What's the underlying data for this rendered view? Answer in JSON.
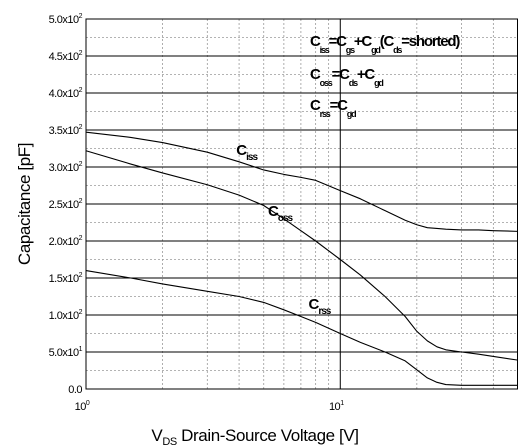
{
  "chart_data": {
    "type": "line",
    "xscale": "log",
    "xlim": [
      1,
      50
    ],
    "ylim": [
      0,
      500
    ],
    "xlabel": {
      "v": "V",
      "sub": "DS",
      "text": "Drain-Source Voltage [V]"
    },
    "ylabel": "Capacitance   [pF]",
    "x_ticks": [
      {
        "value": 1,
        "base": "10",
        "exp": "0"
      },
      {
        "value": 10,
        "base": "10",
        "exp": "1"
      }
    ],
    "y_ticks": [
      {
        "value": 0,
        "text": "0.0",
        "exp": ""
      },
      {
        "value": 50,
        "text": "5.0x10",
        "exp": "1"
      },
      {
        "value": 100,
        "text": "1.0x10",
        "exp": "2"
      },
      {
        "value": 150,
        "text": "1.5x10",
        "exp": "2"
      },
      {
        "value": 200,
        "text": "2.0x10",
        "exp": "2"
      },
      {
        "value": 250,
        "text": "2.5x10",
        "exp": "2"
      },
      {
        "value": 300,
        "text": "3.0x10",
        "exp": "2"
      },
      {
        "value": 350,
        "text": "3.5x10",
        "exp": "2"
      },
      {
        "value": 400,
        "text": "4.0x10",
        "exp": "2"
      },
      {
        "value": 450,
        "text": "4.5x10",
        "exp": "2"
      },
      {
        "value": 500,
        "text": "5.0x10",
        "exp": "2"
      }
    ],
    "grid": {
      "major": true,
      "minor_dashed": true
    },
    "series": [
      {
        "name": "Ciss",
        "x": [
          1,
          1.5,
          2,
          3,
          4,
          5,
          6,
          7,
          8,
          10,
          12,
          15,
          18,
          20,
          22,
          24,
          26,
          30,
          35,
          40,
          50
        ],
        "y": [
          347,
          340,
          333,
          320,
          307,
          296,
          290,
          286,
          282,
          268,
          257,
          241,
          228,
          222,
          218,
          217,
          216,
          215,
          215,
          214,
          213
        ]
      },
      {
        "name": "Coss",
        "x": [
          1,
          1.5,
          2,
          3,
          4,
          5,
          6,
          7,
          8,
          10,
          12,
          15,
          18,
          20,
          22,
          24,
          26,
          30,
          35,
          40,
          50
        ],
        "y": [
          322,
          304,
          292,
          276,
          262,
          248,
          230,
          214,
          200,
          175,
          154,
          125,
          98,
          78,
          65,
          57,
          53,
          50,
          47,
          44,
          39
        ]
      },
      {
        "name": "Crss",
        "x": [
          1,
          1.5,
          2,
          3,
          4,
          5,
          6,
          7,
          8,
          10,
          12,
          15,
          18,
          20,
          22,
          24,
          26,
          30,
          35,
          40,
          50
        ],
        "y": [
          160,
          150,
          142,
          132,
          125,
          117,
          107,
          98,
          90,
          75,
          63,
          50,
          38,
          26,
          15,
          9,
          6,
          5,
          5,
          5,
          5
        ]
      }
    ],
    "curve_labels": [
      {
        "series": "Ciss",
        "main": "C",
        "sub": "iss"
      },
      {
        "series": "Coss",
        "main": "C",
        "sub": "oss"
      },
      {
        "series": "Crss",
        "main": "C",
        "sub": "rss"
      }
    ],
    "annotations": [
      {
        "name": "ciss-equation",
        "parts": [
          [
            "C",
            ""
          ],
          [
            "iss",
            "s"
          ],
          [
            "=C",
            ""
          ],
          [
            "gs",
            "s"
          ],
          [
            "+C",
            ""
          ],
          [
            "gd",
            "s"
          ],
          [
            "(C",
            ""
          ],
          [
            "ds",
            "s"
          ],
          [
            "=shorted)",
            ""
          ]
        ]
      },
      {
        "name": "coss-equation",
        "parts": [
          [
            "C",
            ""
          ],
          [
            "oss",
            "s"
          ],
          [
            "=C",
            ""
          ],
          [
            "ds",
            "s"
          ],
          [
            "+C",
            ""
          ],
          [
            "gd",
            "s"
          ]
        ]
      },
      {
        "name": "crss-equation",
        "parts": [
          [
            "C",
            ""
          ],
          [
            "rss",
            "s"
          ],
          [
            "=C",
            ""
          ],
          [
            "gd",
            "s"
          ]
        ]
      }
    ]
  }
}
